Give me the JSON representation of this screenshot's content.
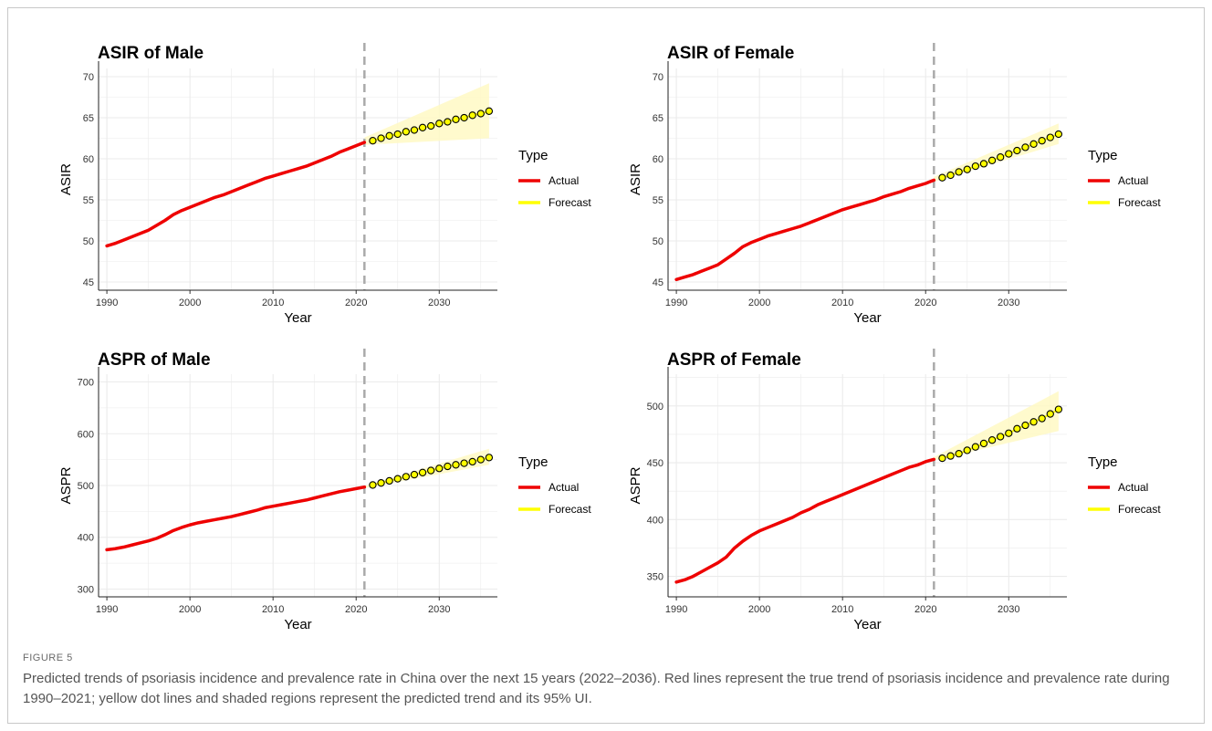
{
  "figure": {
    "label": "FIGURE 5",
    "caption": "Predicted trends of psoriasis incidence and prevalence rate in China over the next 15 years (2022–2036). Red lines represent the true trend of psoriasis incidence and prevalence rate during 1990–2021; yellow dot lines and shaded regions represent the predicted trend and its 95% UI."
  },
  "colors": {
    "actual": "#ee0000",
    "forecast": "#ffff00",
    "band": "#fff9c4",
    "vline": "#aaaaaa",
    "grid": "#ebebeb"
  },
  "chart_data": [
    {
      "id": "asir-male",
      "type": "line",
      "title": "ASIR of Male",
      "xlabel": "Year",
      "ylabel": "ASIR",
      "xlim": [
        1989,
        2037
      ],
      "ylim": [
        44,
        71
      ],
      "xticks": [
        1990,
        2000,
        2010,
        2020,
        2030
      ],
      "yticks": [
        45,
        50,
        55,
        60,
        65,
        70
      ],
      "vline_x": 2021,
      "grid": true,
      "legend": {
        "title": "Type",
        "position": "right",
        "entries": [
          "Actual",
          "Forecast"
        ]
      },
      "series": [
        {
          "name": "Actual",
          "x": [
            1990,
            1991,
            1992,
            1993,
            1994,
            1995,
            1996,
            1997,
            1998,
            1999,
            2000,
            2001,
            2002,
            2003,
            2004,
            2005,
            2006,
            2007,
            2008,
            2009,
            2010,
            2011,
            2012,
            2013,
            2014,
            2015,
            2016,
            2017,
            2018,
            2019,
            2020,
            2021
          ],
          "y": [
            49.4,
            49.7,
            50.1,
            50.5,
            50.9,
            51.3,
            51.9,
            52.5,
            53.2,
            53.7,
            54.1,
            54.5,
            54.9,
            55.3,
            55.6,
            56.0,
            56.4,
            56.8,
            57.2,
            57.6,
            57.9,
            58.2,
            58.5,
            58.8,
            59.1,
            59.5,
            59.9,
            60.3,
            60.8,
            61.2,
            61.6,
            62.0
          ]
        },
        {
          "name": "Forecast",
          "x": [
            2022,
            2023,
            2024,
            2025,
            2026,
            2027,
            2028,
            2029,
            2030,
            2031,
            2032,
            2033,
            2034,
            2035,
            2036
          ],
          "y": [
            62.2,
            62.5,
            62.8,
            63.0,
            63.3,
            63.5,
            63.8,
            64.0,
            64.3,
            64.5,
            64.8,
            65.0,
            65.3,
            65.5,
            65.8
          ]
        }
      ],
      "band": {
        "x": [
          2021,
          2036
        ],
        "lower": [
          61.7,
          62.5
        ],
        "upper": [
          62.6,
          69.2
        ]
      }
    },
    {
      "id": "asir-female",
      "type": "line",
      "title": "ASIR of Female",
      "xlabel": "Year",
      "ylabel": "ASIR",
      "xlim": [
        1989,
        2037
      ],
      "ylim": [
        44,
        71
      ],
      "xticks": [
        1990,
        2000,
        2010,
        2020,
        2030
      ],
      "yticks": [
        45,
        50,
        55,
        60,
        65,
        70
      ],
      "vline_x": 2021,
      "grid": true,
      "legend": {
        "title": "Type",
        "position": "right",
        "entries": [
          "Actual",
          "Forecast"
        ]
      },
      "series": [
        {
          "name": "Actual",
          "x": [
            1990,
            1991,
            1992,
            1993,
            1994,
            1995,
            1996,
            1997,
            1998,
            1999,
            2000,
            2001,
            2002,
            2003,
            2004,
            2005,
            2006,
            2007,
            2008,
            2009,
            2010,
            2011,
            2012,
            2013,
            2014,
            2015,
            2016,
            2017,
            2018,
            2019,
            2020,
            2021
          ],
          "y": [
            45.3,
            45.6,
            45.9,
            46.3,
            46.7,
            47.1,
            47.8,
            48.5,
            49.3,
            49.8,
            50.2,
            50.6,
            50.9,
            51.2,
            51.5,
            51.8,
            52.2,
            52.6,
            53.0,
            53.4,
            53.8,
            54.1,
            54.4,
            54.7,
            55.0,
            55.4,
            55.7,
            56.0,
            56.4,
            56.7,
            57.0,
            57.4
          ]
        },
        {
          "name": "Forecast",
          "x": [
            2022,
            2023,
            2024,
            2025,
            2026,
            2027,
            2028,
            2029,
            2030,
            2031,
            2032,
            2033,
            2034,
            2035,
            2036
          ],
          "y": [
            57.7,
            58.0,
            58.4,
            58.7,
            59.1,
            59.4,
            59.8,
            60.2,
            60.6,
            61.0,
            61.4,
            61.8,
            62.2,
            62.6,
            63.0
          ]
        }
      ],
      "band": {
        "x": [
          2021,
          2036
        ],
        "lower": [
          57.2,
          61.8
        ],
        "upper": [
          57.8,
          64.3
        ]
      }
    },
    {
      "id": "aspr-male",
      "type": "line",
      "title": "ASPR of Male",
      "xlabel": "Year",
      "ylabel": "ASPR",
      "xlim": [
        1989,
        2037
      ],
      "ylim": [
        285,
        715
      ],
      "xticks": [
        1990,
        2000,
        2010,
        2020,
        2030
      ],
      "yticks": [
        300,
        400,
        500,
        600,
        700
      ],
      "vline_x": 2021,
      "grid": true,
      "legend": {
        "title": "Type",
        "position": "right",
        "entries": [
          "Actual",
          "Forecast"
        ]
      },
      "series": [
        {
          "name": "Actual",
          "x": [
            1990,
            1991,
            1992,
            1993,
            1994,
            1995,
            1996,
            1997,
            1998,
            1999,
            2000,
            2001,
            2002,
            2003,
            2004,
            2005,
            2006,
            2007,
            2008,
            2009,
            2010,
            2011,
            2012,
            2013,
            2014,
            2015,
            2016,
            2017,
            2018,
            2019,
            2020,
            2021
          ],
          "y": [
            376,
            378,
            381,
            385,
            389,
            393,
            398,
            405,
            413,
            419,
            424,
            428,
            431,
            434,
            437,
            440,
            444,
            448,
            452,
            457,
            460,
            463,
            466,
            469,
            472,
            476,
            480,
            484,
            488,
            491,
            494,
            497
          ]
        },
        {
          "name": "Forecast",
          "x": [
            2022,
            2023,
            2024,
            2025,
            2026,
            2027,
            2028,
            2029,
            2030,
            2031,
            2032,
            2033,
            2034,
            2035,
            2036
          ],
          "y": [
            501,
            505,
            509,
            513,
            517,
            521,
            525,
            529,
            533,
            537,
            540,
            543,
            546,
            550,
            554
          ]
        }
      ],
      "band": {
        "x": [
          2021,
          2036
        ],
        "lower": [
          495,
          540
        ],
        "upper": [
          499,
          571
        ]
      }
    },
    {
      "id": "aspr-female",
      "type": "line",
      "title": "ASPR of Female",
      "xlabel": "Year",
      "ylabel": "ASPR",
      "xlim": [
        1989,
        2037
      ],
      "ylim": [
        332,
        528
      ],
      "xticks": [
        1990,
        2000,
        2010,
        2020,
        2030
      ],
      "yticks": [
        350,
        400,
        450,
        500
      ],
      "vline_x": 2021,
      "grid": true,
      "legend": {
        "title": "Type",
        "position": "right",
        "entries": [
          "Actual",
          "Forecast"
        ]
      },
      "series": [
        {
          "name": "Actual",
          "x": [
            1990,
            1991,
            1992,
            1993,
            1994,
            1995,
            1996,
            1997,
            1998,
            1999,
            2000,
            2001,
            2002,
            2003,
            2004,
            2005,
            2006,
            2007,
            2008,
            2009,
            2010,
            2011,
            2012,
            2013,
            2014,
            2015,
            2016,
            2017,
            2018,
            2019,
            2020,
            2021
          ],
          "y": [
            345,
            347,
            350,
            354,
            358,
            362,
            367,
            375,
            381,
            386,
            390,
            393,
            396,
            399,
            402,
            406,
            409,
            413,
            416,
            419,
            422,
            425,
            428,
            431,
            434,
            437,
            440,
            443,
            446,
            448,
            451,
            453
          ]
        },
        {
          "name": "Forecast",
          "x": [
            2022,
            2023,
            2024,
            2025,
            2026,
            2027,
            2028,
            2029,
            2030,
            2031,
            2032,
            2033,
            2034,
            2035,
            2036
          ],
          "y": [
            454,
            456,
            458,
            461,
            464,
            467,
            470,
            473,
            476,
            480,
            483,
            486,
            489,
            493,
            497
          ]
        }
      ],
      "band": {
        "x": [
          2021,
          2036
        ],
        "lower": [
          452,
          478
        ],
        "upper": [
          455,
          513
        ]
      }
    }
  ]
}
